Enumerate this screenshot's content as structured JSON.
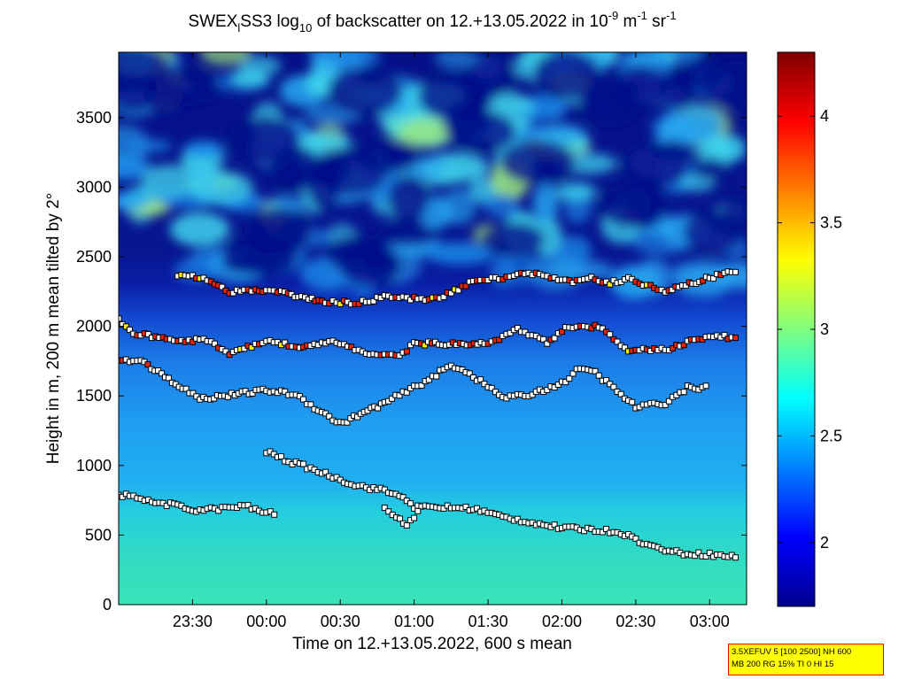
{
  "chart_data": {
    "type": "heatmap",
    "title_parts": {
      "a": "SWEX",
      "sub1": "l",
      "b": "SS3 log",
      "sub2": "10",
      "c": " of backscatter on 12.+13.05.2022 in 10",
      "sup1": "-9",
      "d": " m",
      "sup2": "-1",
      "e": " sr",
      "sup3": "-1"
    },
    "xlabel": "Time on 12.+13.05.2022, 600 s mean",
    "ylabel": "Height in m, 200 m mean tilted by 2°",
    "x_range_hours": [
      23.0,
      27.25
    ],
    "x_ticks": [
      {
        "h": 23.5,
        "label": "23:30"
      },
      {
        "h": 24.0,
        "label": "00:00"
      },
      {
        "h": 24.5,
        "label": "00:30"
      },
      {
        "h": 25.0,
        "label": "01:00"
      },
      {
        "h": 25.5,
        "label": "01:30"
      },
      {
        "h": 26.0,
        "label": "02:00"
      },
      {
        "h": 26.5,
        "label": "02:30"
      },
      {
        "h": 27.0,
        "label": "03:00"
      }
    ],
    "ylim": [
      0,
      3970
    ],
    "y_ticks": [
      0,
      500,
      1000,
      1500,
      2000,
      2500,
      3000,
      3500
    ],
    "colorbar": {
      "range": [
        1.7,
        4.3
      ],
      "ticks": [
        2,
        2.5,
        3,
        3.5,
        4
      ],
      "colormap": "jet"
    },
    "layers": [
      {
        "name": "surface layer top",
        "points": [
          [
            23.0,
            780
          ],
          [
            23.1,
            790
          ],
          [
            23.2,
            740
          ],
          [
            23.35,
            720
          ],
          [
            23.5,
            680
          ],
          [
            23.7,
            690
          ],
          [
            23.85,
            710
          ],
          [
            24.0,
            660
          ],
          [
            24.08,
            650
          ]
        ]
      },
      {
        "name": "descending layer",
        "points": [
          [
            24.0,
            1100
          ],
          [
            24.15,
            1030
          ],
          [
            24.3,
            980
          ],
          [
            24.45,
            920
          ],
          [
            24.6,
            860
          ],
          [
            24.8,
            820
          ],
          [
            24.95,
            760
          ],
          [
            25.0,
            700
          ],
          [
            25.2,
            700
          ],
          [
            25.4,
            690
          ],
          [
            25.6,
            630
          ],
          [
            25.8,
            590
          ],
          [
            26.0,
            550
          ],
          [
            26.2,
            540
          ],
          [
            26.4,
            520
          ],
          [
            26.6,
            420
          ],
          [
            26.8,
            370
          ],
          [
            27.0,
            360
          ],
          [
            27.2,
            340
          ]
        ]
      },
      {
        "name": "dip near 01:00",
        "points": [
          [
            24.8,
            700
          ],
          [
            24.88,
            620
          ],
          [
            24.95,
            580
          ],
          [
            25.0,
            630
          ],
          [
            25.05,
            690
          ]
        ]
      },
      {
        "name": "layer ~1.5 km",
        "points": [
          [
            23.0,
            1760
          ],
          [
            23.15,
            1750
          ],
          [
            23.55,
            1480
          ],
          [
            24.0,
            1540
          ],
          [
            24.2,
            1510
          ],
          [
            24.35,
            1400
          ],
          [
            24.5,
            1300
          ],
          [
            24.8,
            1450
          ],
          [
            25.0,
            1560
          ],
          [
            25.1,
            1620
          ],
          [
            25.25,
            1720
          ],
          [
            25.35,
            1680
          ],
          [
            25.6,
            1490
          ],
          [
            25.75,
            1500
          ],
          [
            26.0,
            1590
          ],
          [
            26.1,
            1680
          ],
          [
            26.2,
            1690
          ],
          [
            26.3,
            1600
          ],
          [
            26.5,
            1420
          ],
          [
            26.7,
            1450
          ],
          [
            26.85,
            1560
          ],
          [
            27.0,
            1560
          ]
        ]
      },
      {
        "name": "layer ~1.9 km",
        "points": [
          [
            23.0,
            2050
          ],
          [
            23.1,
            1950
          ],
          [
            23.35,
            1900
          ],
          [
            23.6,
            1900
          ],
          [
            23.75,
            1800
          ],
          [
            24.0,
            1900
          ],
          [
            24.25,
            1850
          ],
          [
            24.45,
            1900
          ],
          [
            24.7,
            1800
          ],
          [
            24.9,
            1780
          ],
          [
            25.0,
            1880
          ],
          [
            25.5,
            1870
          ],
          [
            25.7,
            1980
          ],
          [
            25.9,
            1880
          ],
          [
            26.05,
            2000
          ],
          [
            26.25,
            2000
          ],
          [
            26.45,
            1830
          ],
          [
            26.7,
            1830
          ],
          [
            26.9,
            1900
          ],
          [
            27.0,
            1930
          ],
          [
            27.2,
            1920
          ]
        ]
      },
      {
        "name": "layer ~2.2 km",
        "points": [
          [
            23.4,
            2370
          ],
          [
            23.55,
            2350
          ],
          [
            23.75,
            2250
          ],
          [
            23.95,
            2260
          ],
          [
            24.1,
            2240
          ],
          [
            24.4,
            2180
          ],
          [
            24.6,
            2170
          ],
          [
            24.8,
            2210
          ],
          [
            25.0,
            2200
          ],
          [
            25.15,
            2200
          ],
          [
            25.4,
            2320
          ],
          [
            25.6,
            2350
          ],
          [
            25.8,
            2380
          ],
          [
            26.05,
            2320
          ],
          [
            26.2,
            2350
          ],
          [
            26.3,
            2310
          ],
          [
            26.45,
            2340
          ],
          [
            26.7,
            2250
          ],
          [
            27.0,
            2350
          ],
          [
            27.2,
            2400
          ]
        ]
      }
    ],
    "legend": "none",
    "grid": false
  },
  "infobox": {
    "line1": "3.5XEFUV 5 [100 2500] NH 600",
    "line2": "MB 200 RG 15% TI 0 HI 15"
  }
}
